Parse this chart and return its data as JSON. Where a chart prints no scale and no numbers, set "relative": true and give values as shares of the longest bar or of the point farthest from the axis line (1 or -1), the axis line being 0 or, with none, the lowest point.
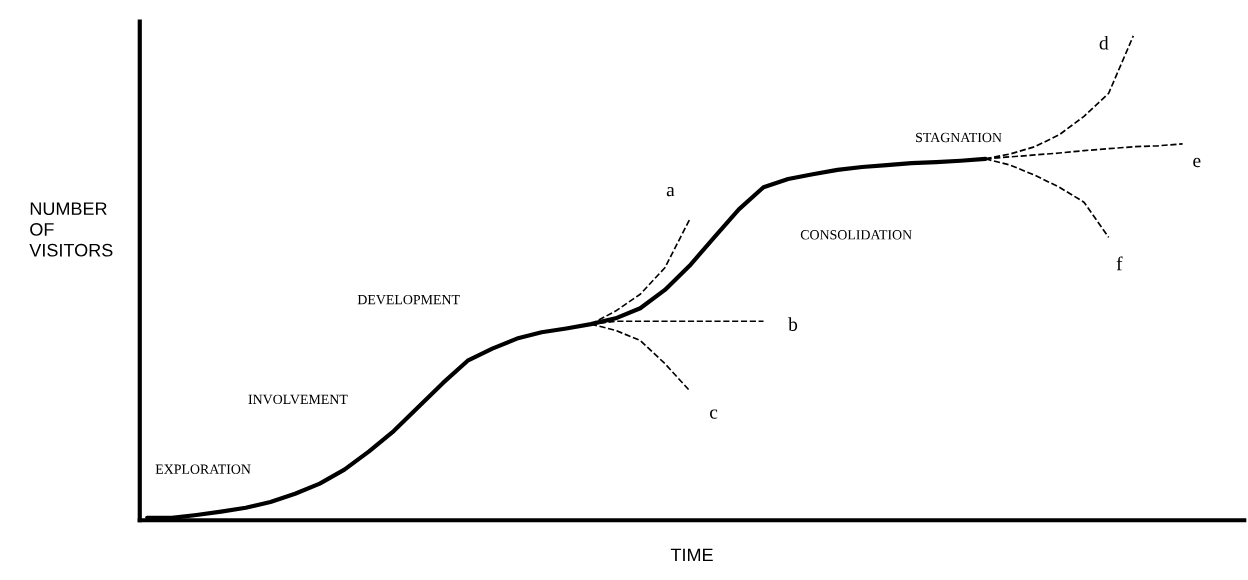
{
  "chart_data": {
    "type": "line",
    "relative": true,
    "xlabel": "TIME",
    "ylabel": "NUMBER OF VISITORS",
    "categories": [
      null,
      null,
      null,
      null,
      null,
      null,
      null,
      null,
      null,
      null,
      null,
      null,
      null,
      null,
      null,
      null,
      null,
      null,
      null,
      null,
      null,
      null,
      null,
      null,
      null,
      null,
      null,
      null,
      null,
      null,
      null,
      null,
      null,
      null,
      null,
      null,
      null,
      null,
      null,
      null,
      null,
      null,
      null,
      null,
      null
    ],
    "series": [
      {
        "color": "#000000",
        "line_style": "solid",
        "values": [
          0,
          0,
          0.006,
          0.013,
          0.021,
          0.033,
          0.05,
          0.071,
          0.1,
          0.138,
          0.18,
          0.23,
          0.28,
          0.326,
          0.351,
          0.372,
          0.385,
          0.393,
          0.402,
          0.414,
          0.435,
          0.473,
          0.523,
          0.582,
          0.64,
          0.686,
          0.703,
          0.713,
          0.722,
          0.728,
          0.732,
          0.736,
          0.738,
          0.741,
          0.745,
          null,
          null,
          null,
          null,
          null,
          null,
          null,
          null,
          null,
          null
        ]
      },
      {
        "name": "a",
        "color": "#000000",
        "line_style": "dashed",
        "values": [
          null,
          null,
          null,
          null,
          null,
          null,
          null,
          null,
          null,
          null,
          null,
          null,
          null,
          null,
          null,
          null,
          null,
          null,
          0.402,
          0.429,
          0.464,
          0.519,
          0.619,
          null,
          null,
          null,
          null,
          null,
          null,
          null,
          null,
          null,
          null,
          null,
          null,
          null,
          null,
          null,
          null,
          null,
          null,
          null,
          null,
          null,
          null
        ]
      },
      {
        "name": "b",
        "color": "#000000",
        "line_style": "dashed",
        "values": [
          null,
          null,
          null,
          null,
          null,
          null,
          null,
          null,
          null,
          null,
          null,
          null,
          null,
          null,
          null,
          null,
          null,
          null,
          0.402,
          0.408,
          0.408,
          0.408,
          0.408,
          0.408,
          0.408,
          0.408,
          null,
          null,
          null,
          null,
          null,
          null,
          null,
          null,
          null,
          null,
          null,
          null,
          null,
          null,
          null,
          null,
          null,
          null,
          null
        ]
      },
      {
        "name": "c",
        "color": "#000000",
        "line_style": "dashed",
        "values": [
          null,
          null,
          null,
          null,
          null,
          null,
          null,
          null,
          null,
          null,
          null,
          null,
          null,
          null,
          null,
          null,
          null,
          null,
          0.402,
          0.389,
          0.368,
          0.32,
          0.264,
          null,
          null,
          null,
          null,
          null,
          null,
          null,
          null,
          null,
          null,
          null,
          null,
          null,
          null,
          null,
          null,
          null,
          null,
          null,
          null,
          null,
          null
        ]
      },
      {
        "name": "d",
        "color": "#000000",
        "line_style": "dashed",
        "values": [
          null,
          null,
          null,
          null,
          null,
          null,
          null,
          null,
          null,
          null,
          null,
          null,
          null,
          null,
          null,
          null,
          null,
          null,
          null,
          null,
          null,
          null,
          null,
          null,
          null,
          null,
          null,
          null,
          null,
          null,
          null,
          null,
          null,
          null,
          0.745,
          0.755,
          0.77,
          0.795,
          0.833,
          0.881,
          1.0,
          null,
          null,
          null,
          null
        ]
      },
      {
        "name": "e",
        "color": "#000000",
        "line_style": "dashed",
        "values": [
          null,
          null,
          null,
          null,
          null,
          null,
          null,
          null,
          null,
          null,
          null,
          null,
          null,
          null,
          null,
          null,
          null,
          null,
          null,
          null,
          null,
          null,
          null,
          null,
          null,
          null,
          null,
          null,
          null,
          null,
          null,
          null,
          null,
          null,
          0.745,
          0.749,
          0.753,
          0.757,
          0.762,
          0.766,
          0.77,
          0.772,
          0.776,
          null,
          null
        ]
      },
      {
        "name": "f",
        "color": "#000000",
        "line_style": "dashed",
        "values": [
          null,
          null,
          null,
          null,
          null,
          null,
          null,
          null,
          null,
          null,
          null,
          null,
          null,
          null,
          null,
          null,
          null,
          null,
          null,
          null,
          null,
          null,
          null,
          null,
          null,
          null,
          null,
          null,
          null,
          null,
          null,
          null,
          null,
          null,
          0.745,
          0.732,
          0.711,
          0.686,
          0.655,
          0.582,
          null,
          null,
          null,
          null,
          null
        ]
      }
    ],
    "annotations": [
      "EXPLORATION",
      "INVOLVEMENT",
      "DEVELOPMENT",
      "CONSOLIDATION",
      "STAGNATION"
    ],
    "legend": false,
    "tick_labels": false
  }
}
